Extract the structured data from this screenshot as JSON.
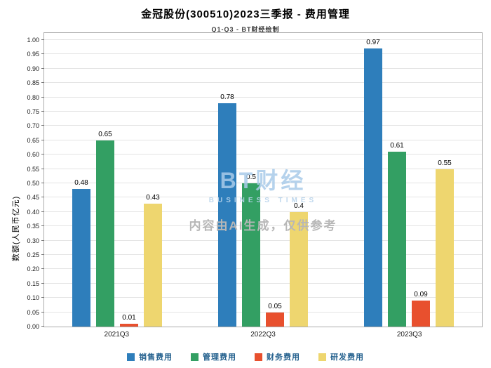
{
  "header": {
    "title": "金冠股份(300510)2023三季报 - 费用管理",
    "subtitle": "Q1-Q3 - BT财经绘制"
  },
  "watermark": {
    "logo_text": "BT财经",
    "logo_subtext": "BUSINESS TIMES",
    "disclaimer": "内容由AI生成，仅供参考"
  },
  "chart_data": {
    "type": "bar",
    "title": "金冠股份(300510)2023三季报 - 费用管理",
    "subtitle": "Q1-Q3 - BT财经绘制",
    "categories": [
      "2021Q3",
      "2022Q3",
      "2023Q3"
    ],
    "series": [
      {
        "name": "销售费用",
        "color": "#2e7ebb",
        "values": [
          0.48,
          0.78,
          0.97
        ]
      },
      {
        "name": "管理费用",
        "color": "#339f63",
        "values": [
          0.65,
          0.5,
          0.61
        ]
      },
      {
        "name": "财务费用",
        "color": "#e8502e",
        "values": [
          0.01,
          0.05,
          0.09
        ]
      },
      {
        "name": "研发费用",
        "color": "#eed66f",
        "values": [
          0.43,
          0.4,
          0.55
        ]
      }
    ],
    "xlabel": "",
    "ylabel": "数额(人民币亿元)",
    "ylim": [
      0,
      1.0
    ],
    "ytick_step": 0.05,
    "grid": true,
    "legend_position": "bottom"
  }
}
